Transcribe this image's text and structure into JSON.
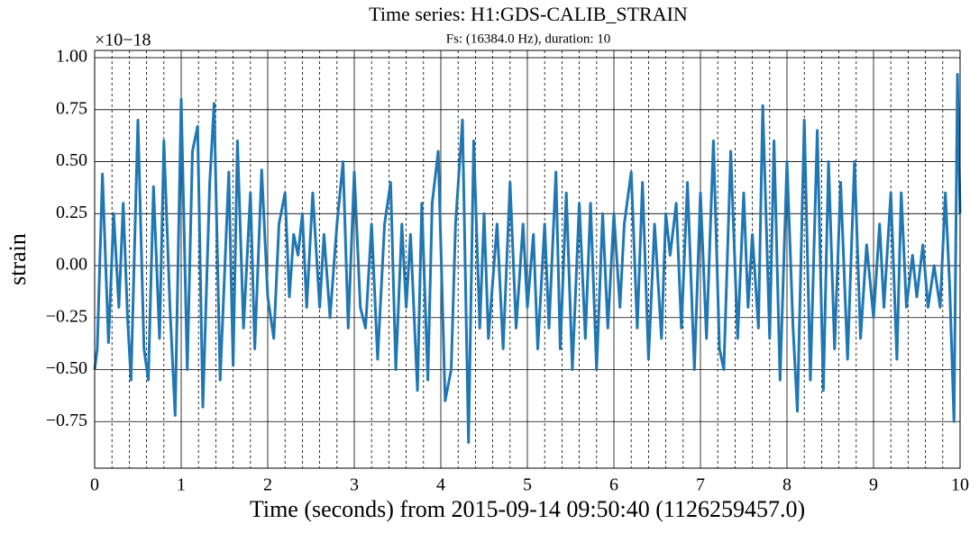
{
  "chart_data": {
    "type": "line",
    "title": "Time series: H1:GDS-CALIB_STRAIN",
    "subtitle": "Fs: (16384.0 Hz), duration: 10",
    "x_label": "Time (seconds) from 2015-09-14 09:50:40 (1126259457.0)",
    "y_label": "strain",
    "y_offset_label": "×10−18",
    "color": "#1f77b4",
    "grid": true,
    "xlim": [
      0,
      10
    ],
    "ylim": [
      -0.974,
      1.035
    ],
    "xticks": [
      0,
      1,
      2,
      3,
      4,
      5,
      6,
      7,
      8,
      9,
      10
    ],
    "xminorticks": [
      0.2,
      0.4,
      0.6,
      0.8,
      1.2,
      1.4,
      1.6,
      1.8,
      2.2,
      2.4,
      2.6,
      2.8,
      3.2,
      3.4,
      3.6,
      3.8,
      4.2,
      4.4,
      4.6,
      4.8,
      5.2,
      5.4,
      5.6,
      5.8,
      6.2,
      6.4,
      6.6,
      6.8,
      7.2,
      7.4,
      7.6,
      7.8,
      8.2,
      8.4,
      8.6,
      8.8,
      9.2,
      9.4,
      9.6,
      9.8
    ],
    "yticks": [
      {
        "value": 1,
        "label": "1.00"
      },
      {
        "value": 0.75,
        "label": "0.75"
      },
      {
        "value": 0.5,
        "label": "0.50"
      },
      {
        "value": 0.25,
        "label": "0.25"
      },
      {
        "value": 0,
        "label": "0.00"
      },
      {
        "value": -0.25,
        "label": "−0.25"
      },
      {
        "value": -0.5,
        "label": "−0.50"
      },
      {
        "value": -0.75,
        "label": "−0.75"
      }
    ],
    "x": [
      0,
      0.03,
      0.09,
      0.16,
      0.22,
      0.28,
      0.33,
      0.38,
      0.42,
      0.5,
      0.57,
      0.62,
      0.68,
      0.75,
      0.8,
      0.87,
      0.93,
      1.0,
      1.07,
      1.13,
      1.19,
      1.25,
      1.33,
      1.38,
      1.45,
      1.55,
      1.6,
      1.65,
      1.72,
      1.8,
      1.85,
      1.93,
      2.0,
      2.07,
      2.13,
      2.2,
      2.25,
      2.3,
      2.35,
      2.4,
      2.45,
      2.52,
      2.6,
      2.65,
      2.72,
      2.8,
      2.87,
      2.93,
      3.0,
      3.07,
      3.13,
      3.2,
      3.27,
      3.35,
      3.42,
      3.48,
      3.55,
      3.6,
      3.65,
      3.73,
      3.78,
      3.85,
      3.9,
      3.97,
      4.05,
      4.12,
      4.17,
      4.25,
      4.32,
      4.38,
      4.45,
      4.5,
      4.55,
      4.65,
      4.72,
      4.8,
      4.87,
      4.95,
      5.0,
      5.07,
      5.12,
      5.2,
      5.25,
      5.33,
      5.38,
      5.45,
      5.52,
      5.6,
      5.67,
      5.73,
      5.8,
      5.87,
      5.93,
      6.0,
      6.07,
      6.12,
      6.2,
      6.27,
      6.33,
      6.4,
      6.47,
      6.55,
      6.6,
      6.65,
      6.72,
      6.78,
      6.85,
      6.93,
      7.0,
      7.07,
      7.15,
      7.22,
      7.27,
      7.35,
      7.43,
      7.5,
      7.55,
      7.6,
      7.67,
      7.72,
      7.8,
      7.85,
      7.92,
      8.0,
      8.07,
      8.12,
      8.2,
      8.27,
      8.35,
      8.42,
      8.48,
      8.55,
      8.62,
      8.7,
      8.78,
      8.85,
      8.92,
      9.0,
      9.07,
      9.12,
      9.2,
      9.27,
      9.32,
      9.38,
      9.45,
      9.5,
      9.57,
      9.63,
      9.7,
      9.77,
      9.83,
      9.88,
      9.93,
      9.97,
      10.0
    ],
    "values": [
      -0.5,
      -0.4,
      0.44,
      -0.37,
      0.25,
      -0.2,
      0.3,
      -0.25,
      -0.55,
      0.7,
      -0.4,
      -0.55,
      0.38,
      -0.35,
      0.6,
      -0.2,
      -0.72,
      0.8,
      -0.5,
      0.55,
      0.67,
      -0.68,
      0.4,
      0.78,
      -0.55,
      0.45,
      -0.48,
      0.6,
      -0.3,
      0.35,
      -0.4,
      0.46,
      -0.15,
      -0.35,
      0.2,
      0.35,
      -0.15,
      0.15,
      0.05,
      0.25,
      -0.2,
      0.35,
      -0.2,
      0.15,
      -0.25,
      0.2,
      0.5,
      -0.3,
      0.45,
      -0.2,
      -0.3,
      0.2,
      -0.45,
      0.2,
      0.4,
      -0.5,
      0.2,
      -0.2,
      0.15,
      -0.6,
      0.3,
      -0.55,
      0.3,
      0.55,
      -0.65,
      -0.5,
      0.2,
      0.7,
      -0.85,
      0.6,
      -0.3,
      0.25,
      -0.35,
      0.2,
      -0.4,
      0.4,
      -0.3,
      0.2,
      -0.2,
      0.15,
      -0.4,
      0.2,
      -0.3,
      0.45,
      -0.4,
      0.35,
      -0.5,
      0.3,
      -0.35,
      0.3,
      -0.5,
      0.25,
      -0.3,
      0.25,
      -0.2,
      0.2,
      0.45,
      -0.3,
      0.4,
      -0.45,
      0.2,
      -0.35,
      0.25,
      0.05,
      0.3,
      -0.3,
      0.4,
      -0.5,
      0.35,
      -0.35,
      0.6,
      -0.4,
      -0.5,
      0.55,
      -0.35,
      0.35,
      -0.2,
      0.15,
      -0.3,
      0.77,
      -0.35,
      0.6,
      -0.55,
      0.5,
      -0.3,
      -0.7,
      0.7,
      -0.55,
      0.65,
      -0.6,
      0.5,
      -0.4,
      0.4,
      -0.45,
      0.5,
      -0.35,
      0.1,
      -0.25,
      0.2,
      -0.2,
      0.35,
      -0.45,
      0.35,
      -0.2,
      0.05,
      -0.15,
      0.1,
      -0.2,
      0.0,
      -0.2,
      0.35,
      -0.1,
      -0.75,
      0.92,
      0.25
    ]
  }
}
